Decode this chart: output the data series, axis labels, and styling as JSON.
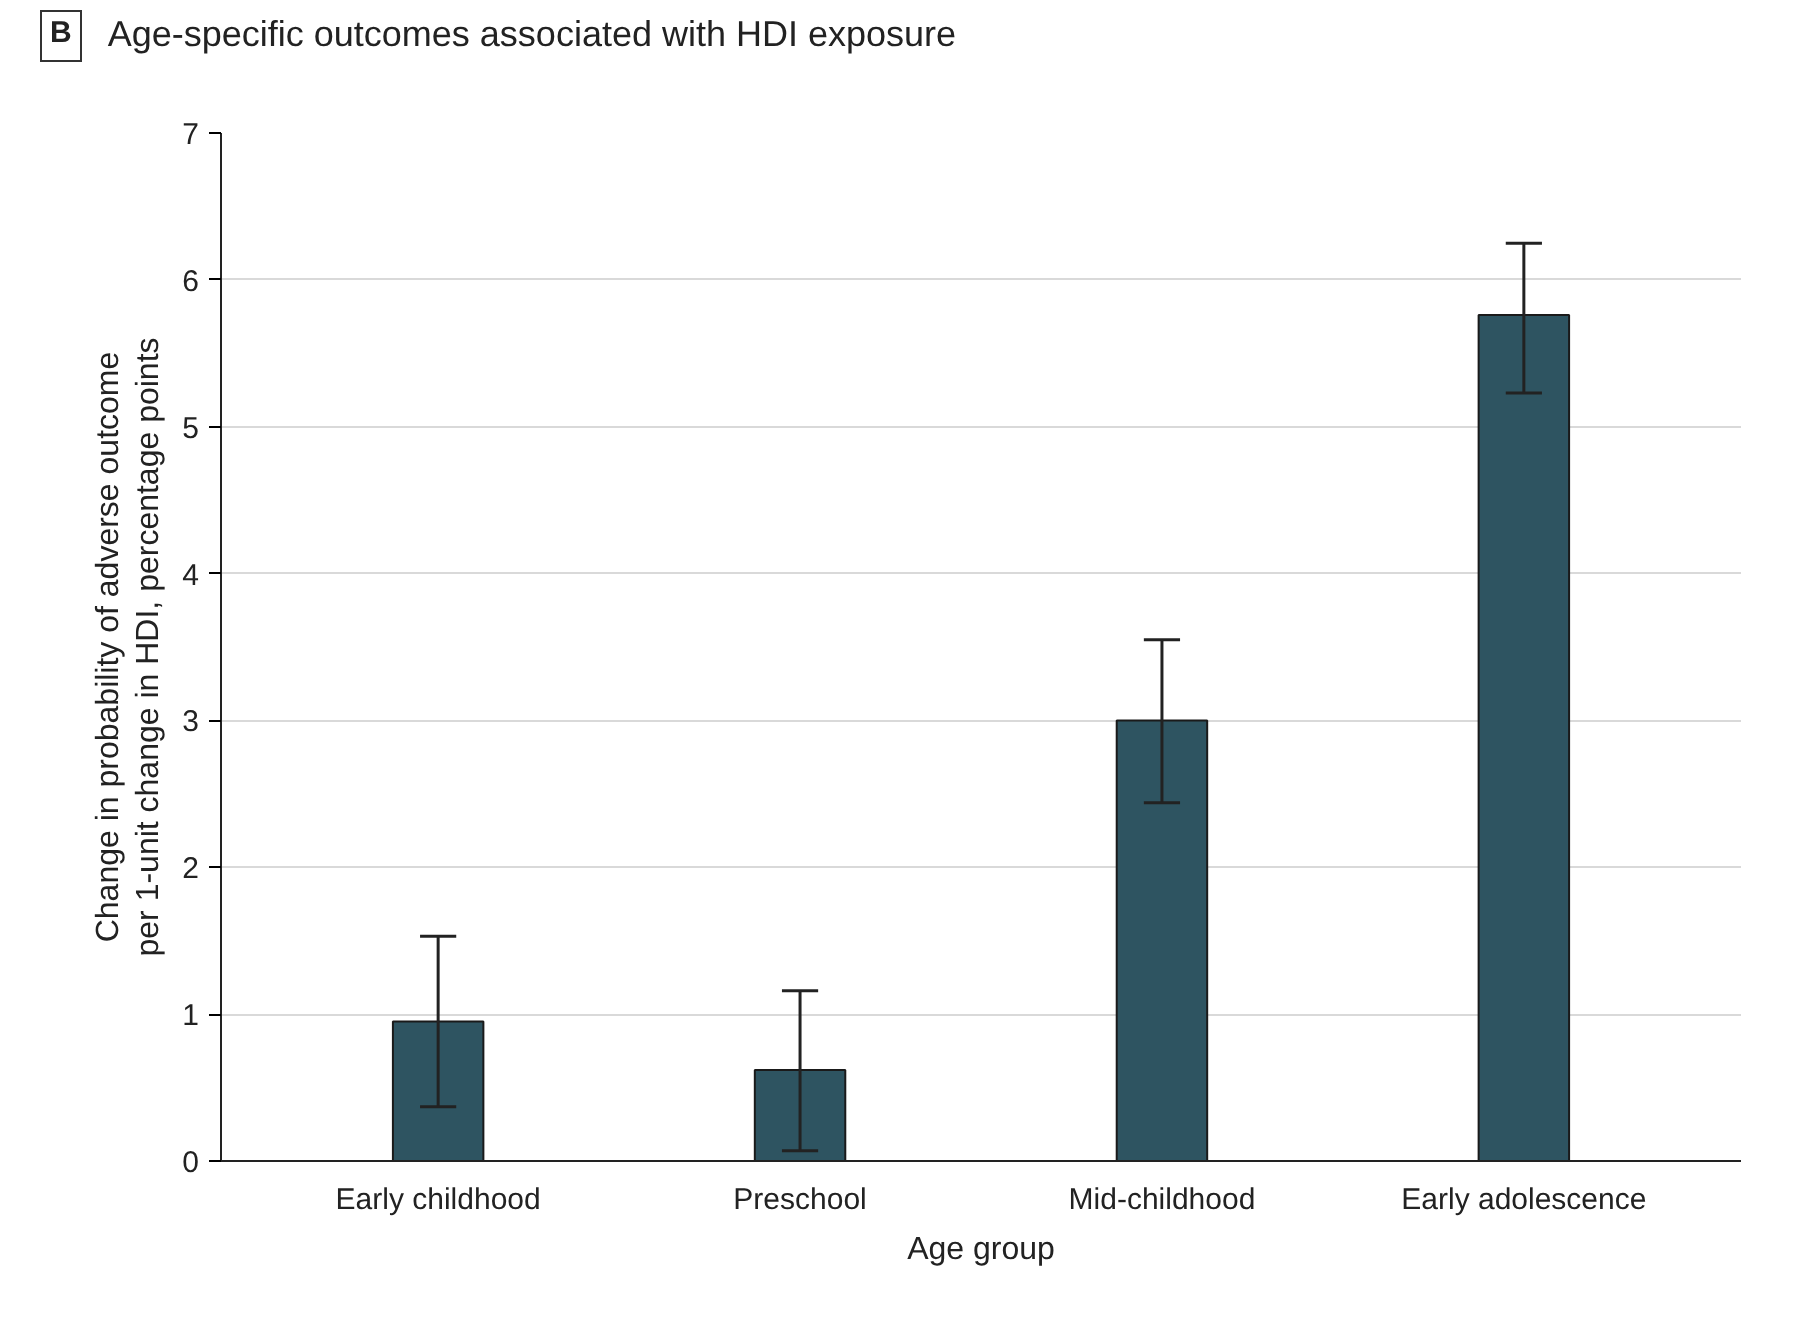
{
  "chart_data": {
    "type": "bar",
    "title": "Age-specific outcomes associated with HDI exposure",
    "annotations": [
      "B"
    ],
    "xlabel": "Age group",
    "ylabel": "Change in probability of adverse outcome\nper 1-unit change in HDI, percentage points",
    "categories": [
      "Early childhood",
      "Preschool",
      "Mid-childhood",
      "Early adolescence"
    ],
    "values": [
      0.95,
      0.62,
      3.0,
      5.76
    ],
    "errors": [
      [
        0.37,
        1.53
      ],
      [
        0.07,
        1.16
      ],
      [
        2.44,
        3.55
      ],
      [
        5.23,
        6.25
      ]
    ],
    "color": "#2e5461",
    "ylim": [
      0,
      7
    ],
    "yticks": [
      0,
      1,
      2,
      3,
      4,
      5,
      6,
      7
    ],
    "grid": "y"
  }
}
